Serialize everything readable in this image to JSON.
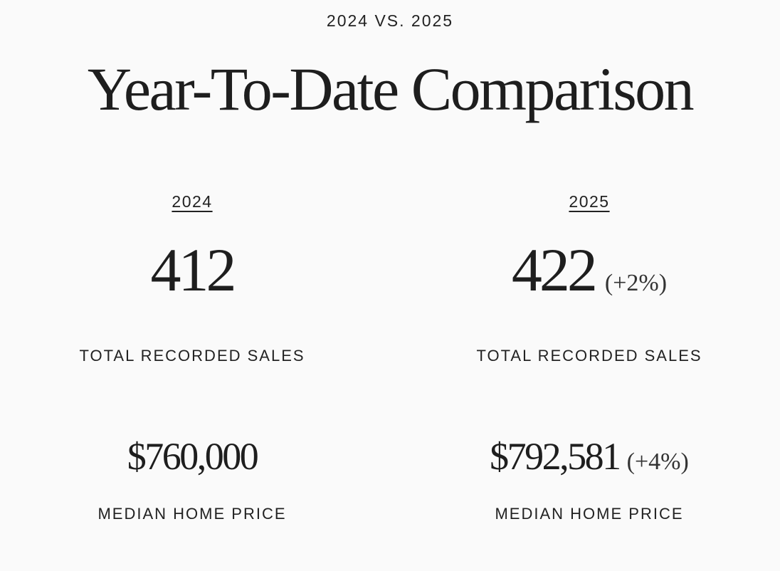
{
  "eyebrow": "2024 VS. 2025",
  "title": "Year-To-Date Comparison",
  "columns": [
    {
      "year": "2024",
      "total_sales": "412",
      "total_sales_change": "",
      "total_sales_label": "TOTAL RECORDED SALES",
      "median_price": "$760,000",
      "median_price_change": "",
      "median_price_label": "MEDIAN HOME PRICE"
    },
    {
      "year": "2025",
      "total_sales": "422",
      "total_sales_change": "(+2%)",
      "total_sales_label": "TOTAL RECORDED SALES",
      "median_price": "$792,581",
      "median_price_change": "(+4%)",
      "median_price_label": "MEDIAN HOME PRICE"
    }
  ]
}
